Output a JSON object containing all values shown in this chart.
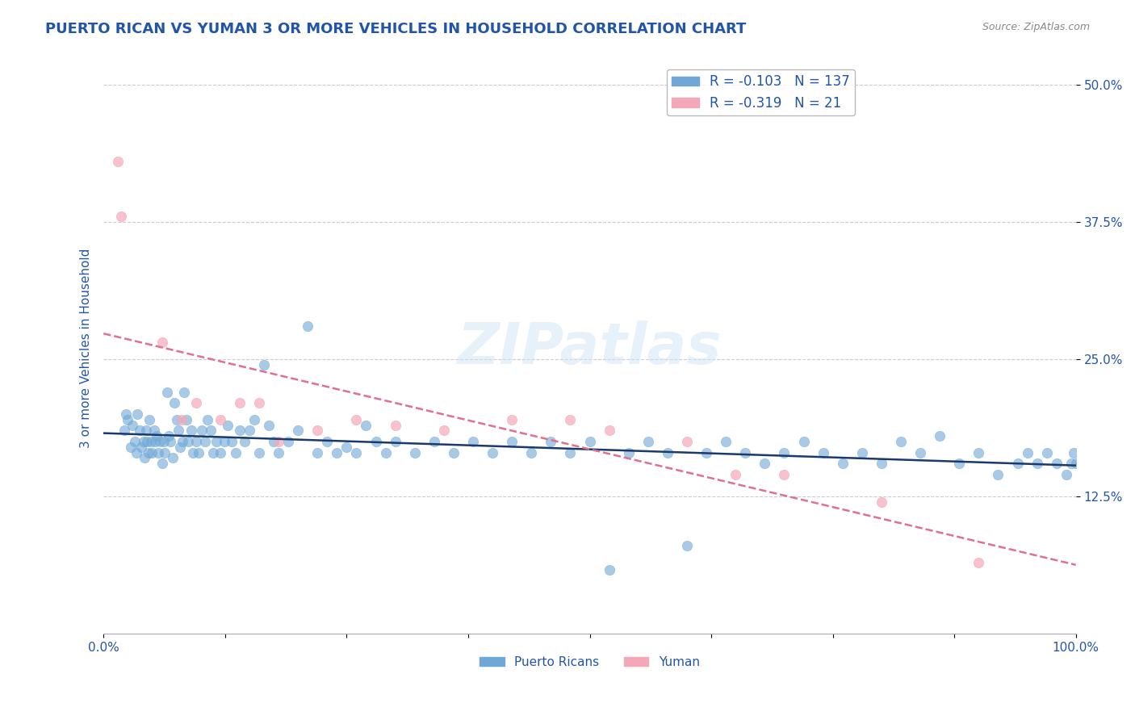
{
  "title": "PUERTO RICAN VS YUMAN 3 OR MORE VEHICLES IN HOUSEHOLD CORRELATION CHART",
  "source": "Source: ZipAtlas.com",
  "xlabel": "",
  "ylabel": "3 or more Vehicles in Household",
  "xlim": [
    0.0,
    100.0
  ],
  "ylim": [
    0.0,
    0.52
  ],
  "yticks": [
    0.125,
    0.25,
    0.375,
    0.5
  ],
  "ytick_labels": [
    "12.5%",
    "25.0%",
    "37.5%",
    "50.0%"
  ],
  "xticks": [
    0.0,
    12.5,
    25.0,
    37.5,
    50.0,
    62.5,
    75.0,
    87.5,
    100.0
  ],
  "xtick_labels": [
    "0.0%",
    "",
    "",
    "",
    "",
    "",
    "",
    "",
    "100.0%"
  ],
  "background_color": "#ffffff",
  "grid_color": "#cccccc",
  "blue_color": "#6fa8d6",
  "pink_color": "#f4a7b9",
  "blue_line_color": "#1a3a6b",
  "pink_line_color": "#e07090",
  "title_color": "#2255aa",
  "axis_label_color": "#2255aa",
  "tick_color": "#2255aa",
  "r_blue": -0.103,
  "n_blue": 137,
  "r_pink": -0.319,
  "n_pink": 21,
  "watermark": "ZIPatlas",
  "blue_points_x": [
    2.1,
    2.3,
    2.5,
    2.8,
    3.0,
    3.2,
    3.4,
    3.5,
    3.7,
    3.9,
    4.1,
    4.2,
    4.4,
    4.5,
    4.6,
    4.7,
    4.9,
    5.0,
    5.2,
    5.3,
    5.5,
    5.6,
    5.8,
    6.0,
    6.2,
    6.3,
    6.5,
    6.7,
    6.9,
    7.1,
    7.3,
    7.5,
    7.7,
    7.9,
    8.1,
    8.3,
    8.5,
    8.7,
    9.0,
    9.2,
    9.5,
    9.8,
    10.1,
    10.4,
    10.7,
    11.0,
    11.3,
    11.6,
    12.0,
    12.4,
    12.8,
    13.2,
    13.6,
    14.0,
    14.5,
    15.0,
    15.5,
    16.0,
    16.5,
    17.0,
    17.5,
    18.0,
    19.0,
    20.0,
    21.0,
    22.0,
    23.0,
    24.0,
    25.0,
    26.0,
    27.0,
    28.0,
    29.0,
    30.0,
    32.0,
    34.0,
    36.0,
    38.0,
    40.0,
    42.0,
    44.0,
    46.0,
    48.0,
    50.0,
    52.0,
    54.0,
    56.0,
    58.0,
    60.0,
    62.0,
    64.0,
    66.0,
    68.0,
    70.0,
    72.0,
    74.0,
    76.0,
    78.0,
    80.0,
    82.0,
    84.0,
    86.0,
    88.0,
    90.0,
    92.0,
    94.0,
    95.0,
    96.0,
    97.0,
    98.0,
    99.0,
    99.5,
    99.8,
    100.0
  ],
  "blue_points_y": [
    0.185,
    0.2,
    0.195,
    0.17,
    0.19,
    0.175,
    0.165,
    0.2,
    0.185,
    0.17,
    0.175,
    0.16,
    0.185,
    0.175,
    0.165,
    0.195,
    0.175,
    0.165,
    0.185,
    0.175,
    0.18,
    0.165,
    0.175,
    0.155,
    0.175,
    0.165,
    0.22,
    0.18,
    0.175,
    0.16,
    0.21,
    0.195,
    0.185,
    0.17,
    0.175,
    0.22,
    0.195,
    0.175,
    0.185,
    0.165,
    0.175,
    0.165,
    0.185,
    0.175,
    0.195,
    0.185,
    0.165,
    0.175,
    0.165,
    0.175,
    0.19,
    0.175,
    0.165,
    0.185,
    0.175,
    0.185,
    0.195,
    0.165,
    0.245,
    0.19,
    0.175,
    0.165,
    0.175,
    0.185,
    0.28,
    0.165,
    0.175,
    0.165,
    0.17,
    0.165,
    0.19,
    0.175,
    0.165,
    0.175,
    0.165,
    0.175,
    0.165,
    0.175,
    0.165,
    0.175,
    0.165,
    0.175,
    0.165,
    0.175,
    0.058,
    0.165,
    0.175,
    0.165,
    0.08,
    0.165,
    0.175,
    0.165,
    0.155,
    0.165,
    0.175,
    0.165,
    0.155,
    0.165,
    0.155,
    0.175,
    0.165,
    0.18,
    0.155,
    0.165,
    0.145,
    0.155,
    0.165,
    0.155,
    0.165,
    0.155,
    0.145,
    0.155,
    0.165,
    0.155
  ],
  "pink_points_x": [
    1.5,
    1.8,
    6.0,
    8.0,
    9.5,
    12.0,
    14.0,
    16.0,
    18.0,
    22.0,
    26.0,
    30.0,
    35.0,
    42.0,
    48.0,
    52.0,
    60.0,
    65.0,
    70.0,
    80.0,
    90.0
  ],
  "pink_points_y": [
    0.43,
    0.38,
    0.265,
    0.195,
    0.21,
    0.195,
    0.21,
    0.21,
    0.175,
    0.185,
    0.195,
    0.19,
    0.185,
    0.195,
    0.195,
    0.185,
    0.175,
    0.145,
    0.145,
    0.12,
    0.065
  ]
}
